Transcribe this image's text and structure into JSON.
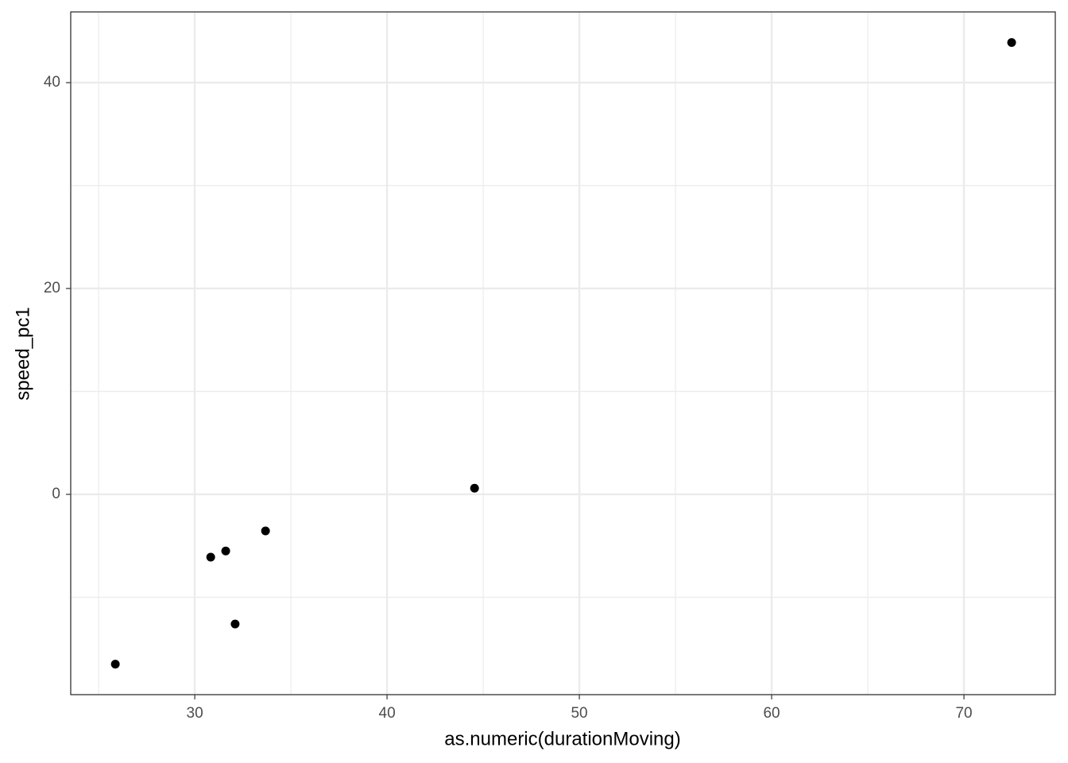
{
  "chart_data": {
    "type": "scatter",
    "x_label": "as.numeric(durationMoving)",
    "y_label": "speed_pc1",
    "series": [
      {
        "color": "#000000",
        "x": [
          25.87,
          30.83,
          31.61,
          32.1,
          33.68,
          44.55,
          72.48
        ],
        "values": [
          -16.5,
          -6.1,
          -5.5,
          -12.6,
          -3.55,
          0.6,
          43.9
        ]
      }
    ],
    "xlim": [
      23.55,
      74.75
    ],
    "ylim": [
      -19.46,
      46.87
    ],
    "xticks": [
      30,
      40,
      50,
      60,
      70
    ],
    "yticks": [
      0,
      20,
      40
    ],
    "grid": true
  }
}
